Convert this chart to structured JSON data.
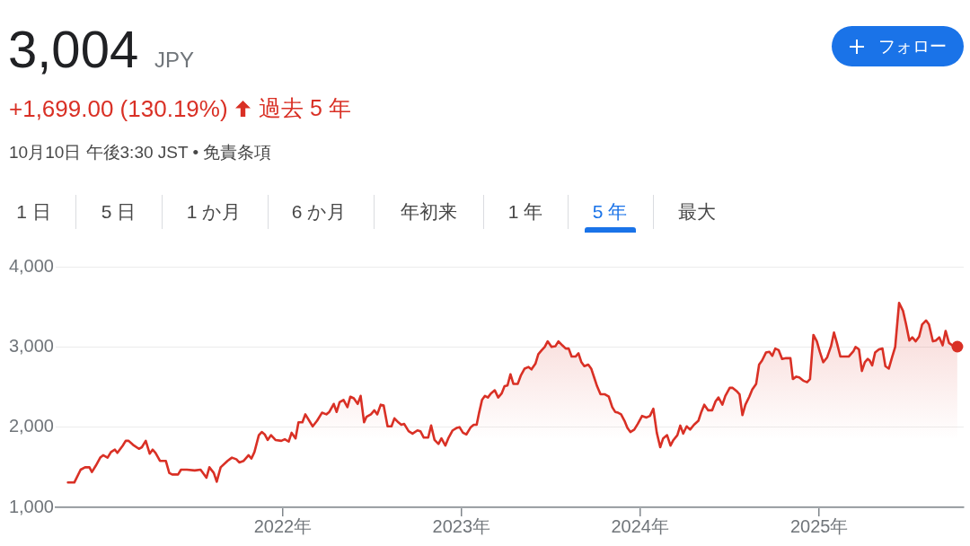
{
  "chart_data": {
    "type": "area",
    "title": "3,004",
    "annotations": [
      "JPY",
      "+1,699.00 (130.19%)",
      "過去 5 年",
      "10月10日 午後3:30 JST • 免責条項",
      "フォロー",
      "1 日",
      "5 日",
      "1 か月",
      "6 か月",
      "年初来",
      "1 年",
      "5 年",
      "最大"
    ],
    "x": [
      "2020-10-19",
      "2020-11-01",
      "2020-11-14",
      "2020-11-23",
      "2020-12-02",
      "2020-12-07",
      "2020-12-15",
      "2020-12-24",
      "2020-12-30",
      "2021-01-08",
      "2021-01-15",
      "2021-01-23",
      "2021-01-28",
      "2021-02-08",
      "2021-02-14",
      "2021-02-20",
      "2021-03-01",
      "2021-03-13",
      "2021-03-19",
      "2021-03-27",
      "2021-04-04",
      "2021-04-10",
      "2021-04-16",
      "2021-04-25",
      "2021-05-07",
      "2021-05-14",
      "2021-05-20",
      "2021-06-01",
      "2021-06-07",
      "2021-06-19",
      "2021-07-05",
      "2021-07-17",
      "2021-07-29",
      "2021-08-04",
      "2021-08-13",
      "2021-08-19",
      "2021-08-27",
      "2021-09-10",
      "2021-09-19",
      "2021-09-28",
      "2021-10-04",
      "2021-10-13",
      "2021-10-23",
      "2021-10-29",
      "2021-11-04",
      "2021-11-13",
      "2021-11-19",
      "2021-11-25",
      "2021-12-01",
      "2021-12-08",
      "2021-12-17",
      "2021-12-29",
      "2022-01-05",
      "2022-01-13",
      "2022-01-19",
      "2022-01-27",
      "2022-02-02",
      "2022-02-10",
      "2022-02-16",
      "2022-03-03",
      "2022-03-12",
      "2022-03-22",
      "2022-03-31",
      "2022-04-06",
      "2022-04-15",
      "2022-04-21",
      "2022-04-27",
      "2022-05-05",
      "2022-05-13",
      "2022-05-19",
      "2022-05-26",
      "2022-06-03",
      "2022-06-09",
      "2022-06-16",
      "2022-06-21",
      "2022-06-30",
      "2022-07-07",
      "2022-07-13",
      "2022-07-20",
      "2022-07-26",
      "2022-08-03",
      "2022-08-11",
      "2022-08-17",
      "2022-08-25",
      "2022-08-31",
      "2022-09-06",
      "2022-09-15",
      "2022-09-23",
      "2022-10-03",
      "2022-10-09",
      "2022-10-16",
      "2022-10-25",
      "2022-10-31",
      "2022-11-07",
      "2022-11-15",
      "2022-11-21",
      "2022-11-29",
      "2022-12-05",
      "2022-12-14",
      "2022-12-22",
      "2022-12-28",
      "2023-01-04",
      "2023-01-11",
      "2023-01-20",
      "2023-01-26",
      "2023-02-01",
      "2023-02-06",
      "2023-02-12",
      "2023-02-18",
      "2023-02-24",
      "2023-03-02",
      "2023-03-10",
      "2023-03-17",
      "2023-03-24",
      "2023-03-30",
      "2023-04-05",
      "2023-04-11",
      "2023-04-17",
      "2023-04-26",
      "2023-05-02",
      "2023-05-10",
      "2023-05-18",
      "2023-05-24",
      "2023-06-01",
      "2023-06-07",
      "2023-06-14",
      "2023-06-20",
      "2023-06-26",
      "2023-07-04",
      "2023-07-12",
      "2023-07-18",
      "2023-07-26",
      "2023-08-02",
      "2023-08-08",
      "2023-08-14",
      "2023-08-22",
      "2023-08-28",
      "2023-09-03",
      "2023-09-09",
      "2023-09-17",
      "2023-09-23",
      "2023-09-29",
      "2023-10-05",
      "2023-10-12",
      "2023-10-21",
      "2023-10-29",
      "2023-11-05",
      "2023-11-11",
      "2023-11-17",
      "2023-11-23",
      "2023-11-30",
      "2023-12-06",
      "2023-12-12",
      "2023-12-20",
      "2023-12-27",
      "2024-01-05",
      "2024-01-14",
      "2024-01-21",
      "2024-01-28",
      "2024-02-04",
      "2024-02-11",
      "2024-02-17",
      "2024-02-25",
      "2024-03-03",
      "2024-03-09",
      "2024-03-17",
      "2024-03-23",
      "2024-03-29",
      "2024-04-05",
      "2024-04-12",
      "2024-04-20",
      "2024-04-29",
      "2024-05-05",
      "2024-05-11",
      "2024-05-19",
      "2024-05-27",
      "2024-06-03",
      "2024-06-09",
      "2024-06-17",
      "2024-06-23",
      "2024-07-02",
      "2024-07-08",
      "2024-07-16",
      "2024-07-22",
      "2024-07-28",
      "2024-08-03",
      "2024-08-11",
      "2024-08-17",
      "2024-08-25",
      "2024-08-31",
      "2024-09-06",
      "2024-09-14",
      "2024-09-21",
      "2024-09-27",
      "2024-10-03",
      "2024-10-10",
      "2024-10-17",
      "2024-10-25",
      "2024-11-03",
      "2024-11-08",
      "2024-11-15",
      "2024-11-21",
      "2024-11-29",
      "2024-12-07",
      "2024-12-13",
      "2024-12-20",
      "2024-12-27",
      "2025-01-02",
      "2025-01-09",
      "2025-01-17",
      "2025-01-25",
      "2025-01-31",
      "2025-02-06",
      "2025-02-13",
      "2025-02-21",
      "2025-03-02",
      "2025-03-12",
      "2025-03-16",
      "2025-03-23",
      "2025-03-29",
      "2025-04-04",
      "2025-04-10",
      "2025-04-14",
      "2025-04-19",
      "2025-04-25",
      "2025-05-03",
      "2025-05-10",
      "2025-05-16",
      "2025-05-23",
      "2025-05-30",
      "2025-06-05",
      "2025-06-13",
      "2025-06-21",
      "2025-06-27",
      "2025-07-04",
      "2025-07-10",
      "2025-07-17",
      "2025-07-24",
      "2025-07-30",
      "2025-08-07",
      "2025-08-13",
      "2025-08-21",
      "2025-08-27",
      "2025-09-03",
      "2025-09-10",
      "2025-09-16",
      "2025-09-23",
      "2025-10-02",
      "2025-10-10"
    ],
    "series": [
      {
        "color": "#d93025",
        "values": [
          1310,
          1310,
          1470,
          1500,
          1500,
          1440,
          1520,
          1620,
          1650,
          1620,
          1690,
          1720,
          1680,
          1770,
          1830,
          1830,
          1780,
          1730,
          1750,
          1830,
          1670,
          1720,
          1680,
          1580,
          1580,
          1430,
          1410,
          1410,
          1470,
          1470,
          1460,
          1470,
          1370,
          1500,
          1430,
          1320,
          1500,
          1580,
          1620,
          1600,
          1560,
          1580,
          1650,
          1610,
          1690,
          1900,
          1940,
          1910,
          1840,
          1900,
          1840,
          1830,
          1850,
          1820,
          1930,
          1860,
          2060,
          2060,
          2160,
          2010,
          2080,
          2180,
          2160,
          2190,
          2290,
          2190,
          2310,
          2340,
          2250,
          2380,
          2360,
          2290,
          2390,
          2060,
          2130,
          2160,
          2210,
          2160,
          2280,
          2270,
          2010,
          2010,
          2110,
          2060,
          2030,
          2040,
          1950,
          1920,
          1960,
          1950,
          1870,
          1870,
          2020,
          1840,
          1790,
          1860,
          1770,
          1860,
          1960,
          1990,
          2000,
          1930,
          1910,
          2000,
          2030,
          2030,
          2180,
          2340,
          2390,
          2370,
          2420,
          2460,
          2370,
          2420,
          2510,
          2520,
          2660,
          2540,
          2540,
          2640,
          2730,
          2750,
          2720,
          2790,
          2910,
          2960,
          3000,
          3070,
          3000,
          3010,
          3070,
          3020,
          2980,
          2980,
          2880,
          2880,
          2920,
          2810,
          2760,
          2780,
          2730,
          2620,
          2510,
          2410,
          2410,
          2380,
          2250,
          2190,
          2180,
          2160,
          2080,
          1990,
          1940,
          1970,
          2040,
          2140,
          2120,
          2140,
          2230,
          1930,
          1750,
          1860,
          1900,
          1770,
          1840,
          1900,
          2020,
          1920,
          2010,
          1970,
          2030,
          2080,
          2190,
          2280,
          2210,
          2210,
          2320,
          2370,
          2280,
          2390,
          2490,
          2490,
          2450,
          2410,
          2150,
          2280,
          2380,
          2470,
          2540,
          2780,
          2830,
          2930,
          2940,
          2890,
          2980,
          2960,
          2850,
          2860,
          2860,
          2600,
          2630,
          2620,
          2580,
          2560,
          2600,
          3150,
          3070,
          2940,
          2810,
          2870,
          3010,
          3180,
          3050,
          2880,
          2880,
          2880,
          2950,
          3000,
          2970,
          2700,
          2810,
          2850,
          2830,
          2770,
          2930,
          2970,
          2980,
          2760,
          2730,
          2880,
          3000,
          3550,
          3450,
          3290,
          3080,
          3120,
          3070,
          3130,
          3280,
          3330,
          3280,
          3070,
          3080,
          3120,
          3020,
          3200,
          3050,
          3010,
          3004
        ]
      },
      {
        "type": "scatter",
        "color": "#d93025",
        "marker": "circle",
        "x": [
          "2025-10-10"
        ],
        "values": [
          3004
        ]
      }
    ],
    "xlim": [
      "2020-09-24",
      "2025-10-23"
    ],
    "xticks": [
      {
        "value": "2022",
        "label": "2022年"
      },
      {
        "value": "2023",
        "label": "2023年"
      },
      {
        "value": "2024",
        "label": "2024年"
      },
      {
        "value": "2025",
        "label": "2025年"
      }
    ],
    "ylim": [
      1000,
      4000
    ],
    "yticks": [
      {
        "value": 1000,
        "label": "1,000"
      },
      {
        "value": 2000,
        "label": "2,000"
      },
      {
        "value": 3000,
        "label": "3,000"
      },
      {
        "value": 4000,
        "label": "4,000"
      }
    ],
    "grid": "y"
  }
}
